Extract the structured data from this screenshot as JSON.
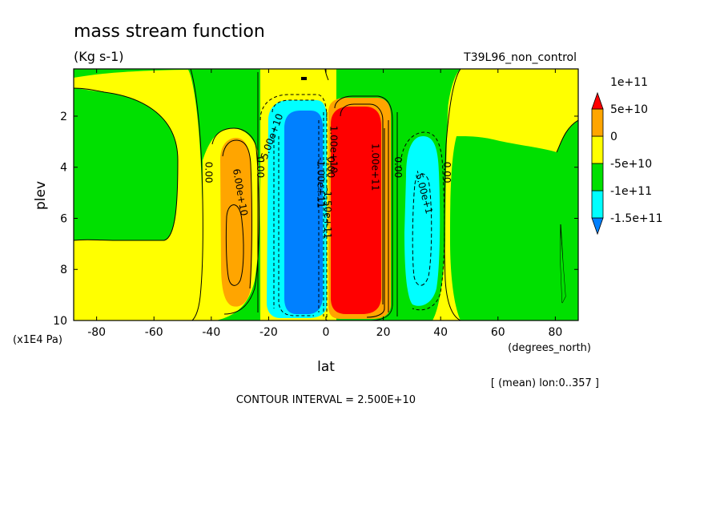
{
  "chart_data": {
    "type": "heatmap",
    "title": "mass stream function",
    "subtitle": "(Kg s-1)",
    "run_label": "T39L96_non_control",
    "xlabel": "lat",
    "xunits": "(degrees_north)",
    "ylabel": "plev",
    "yunits": "(x1E4 Pa)",
    "xlim": [
      -88,
      88
    ],
    "ylim": [
      10,
      0.15
    ],
    "xticks": [
      {
        "value": -80,
        "label": "-80"
      },
      {
        "value": -60,
        "label": "-60"
      },
      {
        "value": -40,
        "label": "-40"
      },
      {
        "value": -20,
        "label": "-20"
      },
      {
        "value": 0,
        "label": "0"
      },
      {
        "value": 20,
        "label": "20"
      },
      {
        "value": 40,
        "label": "40"
      },
      {
        "value": 60,
        "label": "60"
      },
      {
        "value": 80,
        "label": "80"
      }
    ],
    "yticks": [
      {
        "value": 2,
        "label": "2"
      },
      {
        "value": 4,
        "label": "4"
      },
      {
        "value": 6,
        "label": "6"
      },
      {
        "value": 8,
        "label": "8"
      },
      {
        "value": 10,
        "label": "10"
      }
    ],
    "mean_note": "[ (mean) lon:0..357 ]",
    "contour_interval": "CONTOUR INTERVAL = 2.500E+10",
    "colorbar": {
      "colors": [
        "#0080ff",
        "#00ffff",
        "#00e000",
        "#ffff00",
        "#ffa500",
        "#ff0000"
      ],
      "labels": [
        "-1.5e+11",
        "-1e+11",
        "-5e+10",
        "0",
        "5e+10",
        "1e+11"
      ]
    },
    "cells": [
      {
        "name": "south-hadley-cell",
        "center_lat": -31,
        "center_plev": 7.2,
        "peak": 60000000000.0,
        "label": "6.00e+10"
      },
      {
        "name": "south-tropical-cell",
        "center_lat": -9,
        "center_plev": 5.5,
        "peak": -160000000000.0,
        "label": "-1.50e+11"
      },
      {
        "name": "north-tropical-cell",
        "center_lat": 10,
        "center_plev": 5.5,
        "peak": 160000000000.0,
        "label": "1.00e+11"
      },
      {
        "name": "north-ferrel-cell",
        "center_lat": 31,
        "center_plev": 6.5,
        "peak": -110000000000.0,
        "label": "-5.00e+10"
      }
    ],
    "contour_labels": [
      {
        "text": "6.00e+10",
        "lat": -31,
        "plev": 5.0,
        "rotate": 80
      },
      {
        "text": "-5.00e+10",
        "lat": -18,
        "plev": 2.9,
        "rotate": -70
      },
      {
        "text": "1.00e+11",
        "lat": 16,
        "plev": 4.0,
        "rotate": 90
      },
      {
        "text": "-1.00e+11",
        "lat": -3,
        "plev": 4.6,
        "rotate": 90
      },
      {
        "text": "-1.50e+11",
        "lat": -0.5,
        "plev": 5.8,
        "rotate": 90
      },
      {
        "text": "-5.00e+1",
        "lat": 33,
        "plev": 5.0,
        "rotate": 75
      },
      {
        "text": "1.00e+10",
        "lat": 1.5,
        "plev": 3.3,
        "rotate": 90
      },
      {
        "text": "0.00",
        "lat": -42,
        "plev": 4.2,
        "rotate": 90
      },
      {
        "text": "0.00",
        "lat": -24,
        "plev": 4.0,
        "rotate": 90
      },
      {
        "text": "0.00",
        "lat": 24,
        "plev": 4.0,
        "rotate": 90
      },
      {
        "text": "0.00",
        "lat": 41,
        "plev": 4.2,
        "rotate": 90
      },
      {
        "text": "0.00",
        "lat": 0.5,
        "plev": 4.0,
        "rotate": 90
      }
    ]
  }
}
